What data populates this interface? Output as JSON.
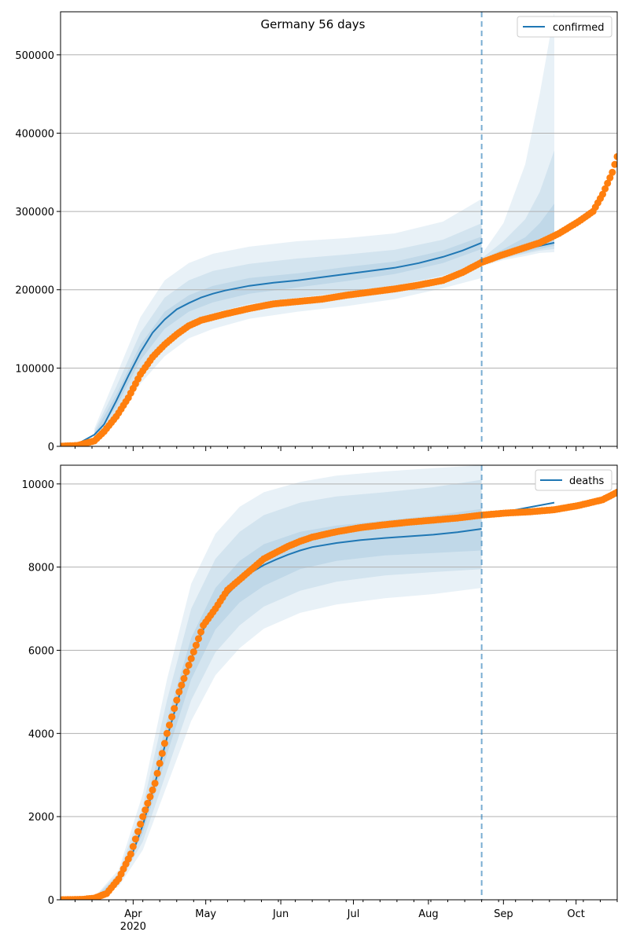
{
  "chart_data": [
    {
      "type": "line",
      "title": "Germany 56 days",
      "legend": {
        "label": "confirmed",
        "placement": "top-right"
      },
      "xlabel": "",
      "ylabel": "",
      "xlim": [
        "2020-03-02",
        "2020-10-18"
      ],
      "ylim": [
        0,
        555000
      ],
      "yticks": [
        0,
        100000,
        200000,
        300000,
        400000,
        500000
      ],
      "ytick_labels": [
        "0",
        "100000",
        "200000",
        "300000",
        "400000",
        "500000"
      ],
      "grid": "horizontal",
      "forecast_start": "2020-08-23",
      "series": [
        {
          "name": "confirmed",
          "role": "model fit",
          "color": "#1f77b4",
          "x": [
            "2020-03-02",
            "2020-03-09",
            "2020-03-16",
            "2020-03-20",
            "2020-03-25",
            "2020-03-30",
            "2020-04-04",
            "2020-04-09",
            "2020-04-14",
            "2020-04-19",
            "2020-04-24",
            "2020-04-29",
            "2020-05-04",
            "2020-05-09",
            "2020-05-19",
            "2020-05-29",
            "2020-06-08",
            "2020-06-18",
            "2020-06-28",
            "2020-07-08",
            "2020-07-18",
            "2020-07-28",
            "2020-08-07",
            "2020-08-15",
            "2020-08-23"
          ],
          "y": [
            500,
            3000,
            15000,
            28000,
            58000,
            90000,
            120000,
            145000,
            162000,
            175000,
            183000,
            190000,
            195000,
            199000,
            205000,
            209000,
            212000,
            216000,
            220000,
            224000,
            228000,
            234000,
            242000,
            250000,
            260000
          ]
        },
        {
          "name": "confirmed forecast",
          "role": "forecast",
          "color": "#1f77b4",
          "x": [
            "2020-08-23",
            "2020-09-01",
            "2020-09-10",
            "2020-09-22"
          ],
          "y": [
            236000,
            245000,
            252000,
            260000
          ]
        },
        {
          "name": "confirmed observed",
          "role": "observed",
          "color": "#ff7f0e",
          "x": [
            "2020-03-02",
            "2020-03-09",
            "2020-03-16",
            "2020-03-20",
            "2020-03-25",
            "2020-03-30",
            "2020-04-04",
            "2020-04-09",
            "2020-04-14",
            "2020-04-19",
            "2020-04-24",
            "2020-04-29",
            "2020-05-04",
            "2020-05-09",
            "2020-05-19",
            "2020-05-29",
            "2020-06-08",
            "2020-06-18",
            "2020-06-28",
            "2020-07-08",
            "2020-07-18",
            "2020-07-28",
            "2020-08-07",
            "2020-08-15",
            "2020-08-23",
            "2020-08-31",
            "2020-09-08",
            "2020-09-16",
            "2020-09-24",
            "2020-10-02",
            "2020-10-08",
            "2020-10-12",
            "2020-10-16",
            "2020-10-18"
          ],
          "y": [
            200,
            1100,
            7000,
            19000,
            38000,
            62000,
            92000,
            114000,
            130000,
            143000,
            154000,
            161000,
            165000,
            169000,
            176000,
            182000,
            185000,
            188000,
            193000,
            197000,
            201000,
            206000,
            212000,
            222000,
            235000,
            244000,
            252000,
            260000,
            272000,
            287000,
            300000,
            322000,
            350000,
            370000
          ]
        }
      ],
      "bands": [
        {
          "name": "inner band",
          "x": [
            "2020-03-16",
            "2020-03-25",
            "2020-04-04",
            "2020-04-14",
            "2020-04-24",
            "2020-05-04",
            "2020-05-19",
            "2020-06-08",
            "2020-06-28",
            "2020-07-18",
            "2020-08-07",
            "2020-08-23"
          ],
          "lower": [
            13000,
            50000,
            110000,
            150000,
            172000,
            184000,
            195000,
            203000,
            211000,
            220000,
            234000,
            252000
          ],
          "upper": [
            17000,
            66000,
            130000,
            172000,
            193000,
            205000,
            215000,
            221000,
            229000,
            236000,
            250000,
            268000
          ]
        },
        {
          "name": "middle band",
          "x": [
            "2020-03-16",
            "2020-03-25",
            "2020-04-04",
            "2020-04-14",
            "2020-04-24",
            "2020-05-04",
            "2020-05-19",
            "2020-06-08",
            "2020-06-28",
            "2020-07-18",
            "2020-08-07",
            "2020-08-23"
          ],
          "lower": [
            11000,
            43000,
            98000,
            136000,
            158000,
            170000,
            182000,
            190000,
            197000,
            205000,
            218000,
            234000
          ],
          "upper": [
            20000,
            76000,
            145000,
            190000,
            212000,
            224000,
            233000,
            240000,
            245000,
            251000,
            264000,
            285000
          ]
        },
        {
          "name": "outer band",
          "x": [
            "2020-03-16",
            "2020-03-25",
            "2020-04-04",
            "2020-04-14",
            "2020-04-24",
            "2020-05-04",
            "2020-05-19",
            "2020-06-08",
            "2020-06-28",
            "2020-07-18",
            "2020-08-07",
            "2020-08-23"
          ],
          "lower": [
            9000,
            34000,
            80000,
            115000,
            138000,
            150000,
            163000,
            172000,
            179000,
            188000,
            202000,
            215000
          ],
          "upper": [
            23000,
            90000,
            165000,
            212000,
            234000,
            246000,
            255000,
            262000,
            266000,
            272000,
            287000,
            316000
          ]
        },
        {
          "name": "forecast inner band",
          "x": [
            "2020-08-23",
            "2020-09-01",
            "2020-09-10",
            "2020-09-16",
            "2020-09-22"
          ],
          "lower": [
            234000,
            242000,
            248000,
            252000,
            256000
          ],
          "upper": [
            238000,
            252000,
            267000,
            285000,
            310000
          ]
        },
        {
          "name": "forecast middle band",
          "x": [
            "2020-08-23",
            "2020-09-01",
            "2020-09-10",
            "2020-09-16",
            "2020-09-22"
          ],
          "lower": [
            232000,
            240000,
            246000,
            250000,
            252000
          ],
          "upper": [
            240000,
            262000,
            290000,
            325000,
            378000
          ]
        },
        {
          "name": "forecast outer band",
          "x": [
            "2020-08-23",
            "2020-09-01",
            "2020-09-10",
            "2020-09-16",
            "2020-09-22"
          ],
          "lower": [
            230000,
            238000,
            243000,
            247000,
            248000
          ],
          "upper": [
            245000,
            285000,
            360000,
            450000,
            555000
          ]
        }
      ]
    },
    {
      "type": "line",
      "title": "",
      "legend": {
        "label": "deaths",
        "placement": "top-right"
      },
      "xlabel": "",
      "ylabel": "",
      "xlim": [
        "2020-03-02",
        "2020-10-18"
      ],
      "ylim": [
        0,
        10450
      ],
      "yticks": [
        0,
        2000,
        4000,
        6000,
        8000,
        10000
      ],
      "ytick_labels": [
        "0",
        "2000",
        "4000",
        "6000",
        "8000",
        "10000"
      ],
      "xtick_labels": [
        "Apr\n2020",
        "May",
        "Jun",
        "Jul",
        "Aug",
        "Sep",
        "Oct"
      ],
      "grid": "horizontal",
      "forecast_start": "2020-08-23",
      "series": [
        {
          "name": "deaths",
          "role": "model fit",
          "color": "#1f77b4",
          "x": [
            "2020-03-02",
            "2020-03-16",
            "2020-03-21",
            "2020-03-26",
            "2020-03-31",
            "2020-04-05",
            "2020-04-10",
            "2020-04-15",
            "2020-04-20",
            "2020-04-25",
            "2020-04-30",
            "2020-05-05",
            "2020-05-10",
            "2020-05-15",
            "2020-05-20",
            "2020-05-25",
            "2020-05-30",
            "2020-06-04",
            "2020-06-09",
            "2020-06-14",
            "2020-06-24",
            "2020-07-04",
            "2020-07-14",
            "2020-07-24",
            "2020-08-03",
            "2020-08-13",
            "2020-08-23"
          ],
          "y": [
            0,
            50,
            200,
            500,
            1000,
            1800,
            2800,
            3900,
            4900,
            5800,
            6500,
            7000,
            7350,
            7650,
            7880,
            8050,
            8180,
            8300,
            8400,
            8480,
            8580,
            8650,
            8700,
            8740,
            8780,
            8840,
            8920
          ]
        },
        {
          "name": "deaths forecast",
          "role": "forecast",
          "color": "#1f77b4",
          "x": [
            "2020-08-23",
            "2020-09-01",
            "2020-09-10",
            "2020-09-22"
          ],
          "y": [
            9270,
            9320,
            9420,
            9550
          ]
        },
        {
          "name": "deaths observed",
          "role": "observed",
          "color": "#ff7f0e",
          "x": [
            "2020-03-02",
            "2020-03-11",
            "2020-03-16",
            "2020-03-21",
            "2020-03-26",
            "2020-03-31",
            "2020-04-05",
            "2020-04-10",
            "2020-04-15",
            "2020-04-20",
            "2020-04-25",
            "2020-04-30",
            "2020-05-05",
            "2020-05-10",
            "2020-05-15",
            "2020-05-20",
            "2020-05-25",
            "2020-05-30",
            "2020-06-04",
            "2020-06-09",
            "2020-06-14",
            "2020-06-24",
            "2020-07-04",
            "2020-07-14",
            "2020-07-24",
            "2020-08-03",
            "2020-08-13",
            "2020-08-23",
            "2020-09-02",
            "2020-09-12",
            "2020-09-22",
            "2020-10-02",
            "2020-10-12",
            "2020-10-18"
          ],
          "y": [
            0,
            10,
            40,
            150,
            500,
            1100,
            2000,
            2800,
            4000,
            5000,
            5800,
            6600,
            7000,
            7450,
            7700,
            7950,
            8200,
            8350,
            8500,
            8620,
            8720,
            8850,
            8950,
            9020,
            9080,
            9130,
            9180,
            9250,
            9300,
            9330,
            9380,
            9480,
            9620,
            9800
          ]
        }
      ],
      "bands": [
        {
          "name": "inner band",
          "x": [
            "2020-03-16",
            "2020-03-26",
            "2020-04-05",
            "2020-04-15",
            "2020-04-25",
            "2020-05-05",
            "2020-05-15",
            "2020-05-25",
            "2020-06-09",
            "2020-06-24",
            "2020-07-14",
            "2020-08-03",
            "2020-08-23"
          ],
          "lower": [
            45,
            440,
            1600,
            3500,
            5300,
            6500,
            7150,
            7550,
            7950,
            8150,
            8280,
            8340,
            8400
          ],
          "upper": [
            55,
            560,
            2000,
            4300,
            6300,
            7500,
            8150,
            8550,
            8850,
            9000,
            9120,
            9240,
            9400
          ]
        },
        {
          "name": "middle band",
          "x": [
            "2020-03-16",
            "2020-03-26",
            "2020-04-05",
            "2020-04-15",
            "2020-04-25",
            "2020-05-05",
            "2020-05-15",
            "2020-05-25",
            "2020-06-09",
            "2020-06-24",
            "2020-07-14",
            "2020-08-03",
            "2020-08-23"
          ],
          "lower": [
            40,
            380,
            1400,
            3100,
            4800,
            5950,
            6600,
            7050,
            7430,
            7650,
            7800,
            7880,
            7950
          ],
          "upper": [
            60,
            640,
            2250,
            4800,
            7000,
            8200,
            8850,
            9250,
            9550,
            9700,
            9800,
            9920,
            10100
          ]
        },
        {
          "name": "outer band",
          "x": [
            "2020-03-16",
            "2020-03-26",
            "2020-04-05",
            "2020-04-15",
            "2020-04-25",
            "2020-05-05",
            "2020-05-15",
            "2020-05-25",
            "2020-06-09",
            "2020-06-24",
            "2020-07-14",
            "2020-08-03",
            "2020-08-23"
          ],
          "lower": [
            35,
            320,
            1200,
            2750,
            4300,
            5400,
            6050,
            6520,
            6900,
            7100,
            7250,
            7350,
            7500
          ],
          "upper": [
            70,
            720,
            2550,
            5300,
            7600,
            8800,
            9450,
            9800,
            10050,
            10200,
            10300,
            10380,
            10450
          ]
        }
      ]
    }
  ]
}
